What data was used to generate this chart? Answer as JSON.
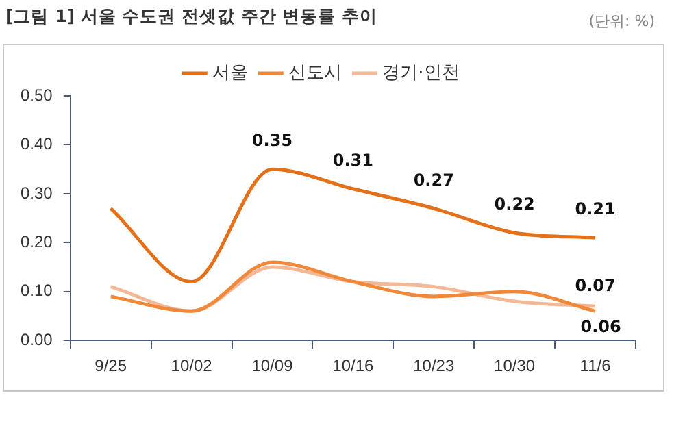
{
  "chart_data": {
    "type": "line",
    "title": "[그림 1] 서울 수도권 전셋값 주간 변동률 추이",
    "annotations": [
      "(단위: %)"
    ],
    "categories": [
      "9/25",
      "10/02",
      "10/09",
      "10/16",
      "10/23",
      "10/30",
      "11/6"
    ],
    "series": [
      {
        "name": "서울",
        "color": "#e4711a",
        "values": [
          0.27,
          0.12,
          0.35,
          0.31,
          0.27,
          0.22,
          0.21
        ],
        "value_labels": [
          null,
          null,
          "0.35",
          "0.31",
          "0.27",
          "0.22",
          "0.21"
        ]
      },
      {
        "name": "신도시",
        "color": "#f0883a",
        "values": [
          0.09,
          0.06,
          0.16,
          0.12,
          0.09,
          0.1,
          0.06
        ],
        "value_labels": [
          null,
          null,
          null,
          null,
          null,
          null,
          "0.06"
        ]
      },
      {
        "name": "경기·인천",
        "color": "#f5b896",
        "values": [
          0.11,
          0.06,
          0.15,
          0.12,
          0.11,
          0.08,
          0.07
        ],
        "value_labels": [
          null,
          null,
          null,
          null,
          null,
          null,
          "0.07"
        ]
      }
    ],
    "ylim": [
      0,
      0.5
    ],
    "yticks": [
      {
        "value": 0,
        "label": "0.00"
      },
      {
        "value": 0.1,
        "label": "0.10"
      },
      {
        "value": 0.2,
        "label": "0.20"
      },
      {
        "value": 0.3,
        "label": "0.30"
      },
      {
        "value": 0.4,
        "label": "0.40"
      },
      {
        "value": 0.5,
        "label": "0.50"
      }
    ],
    "grid": false,
    "legend": "top",
    "marker": "none",
    "line_style": "solid"
  }
}
